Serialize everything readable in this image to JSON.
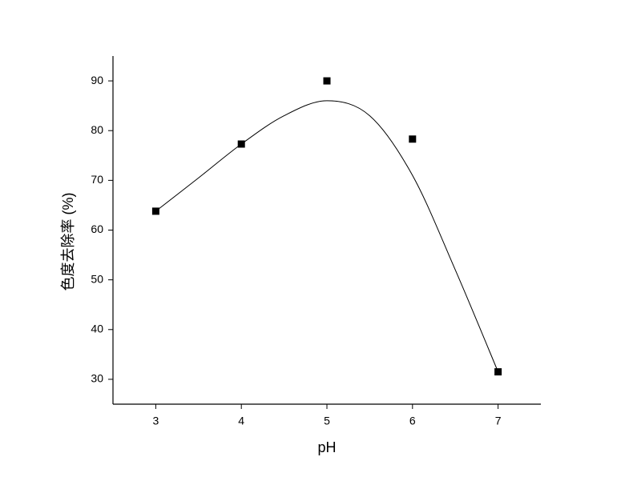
{
  "chart_data": {
    "type": "scatter",
    "x_label": "pH",
    "y_label": "色度去除率 (%)",
    "xlim": [
      2.5,
      7.5
    ],
    "xticks": [
      3,
      4,
      5,
      6,
      7
    ],
    "ylim": [
      25,
      95
    ],
    "yticks": [
      30,
      40,
      50,
      60,
      70,
      80,
      90
    ],
    "series": [
      {
        "marker": "square",
        "color": "#000000",
        "x": [
          3,
          4,
          5,
          6,
          7
        ],
        "values": [
          63.8,
          77.3,
          90,
          78.3,
          31.5
        ]
      },
      {
        "marker": "line",
        "color": "#000000",
        "x": [
          3,
          3.5,
          4,
          4.5,
          5,
          5.5,
          6,
          6.5,
          7
        ],
        "values": [
          63.8,
          70.5,
          77.3,
          83,
          86,
          83,
          71,
          52,
          31.5
        ]
      }
    ]
  }
}
